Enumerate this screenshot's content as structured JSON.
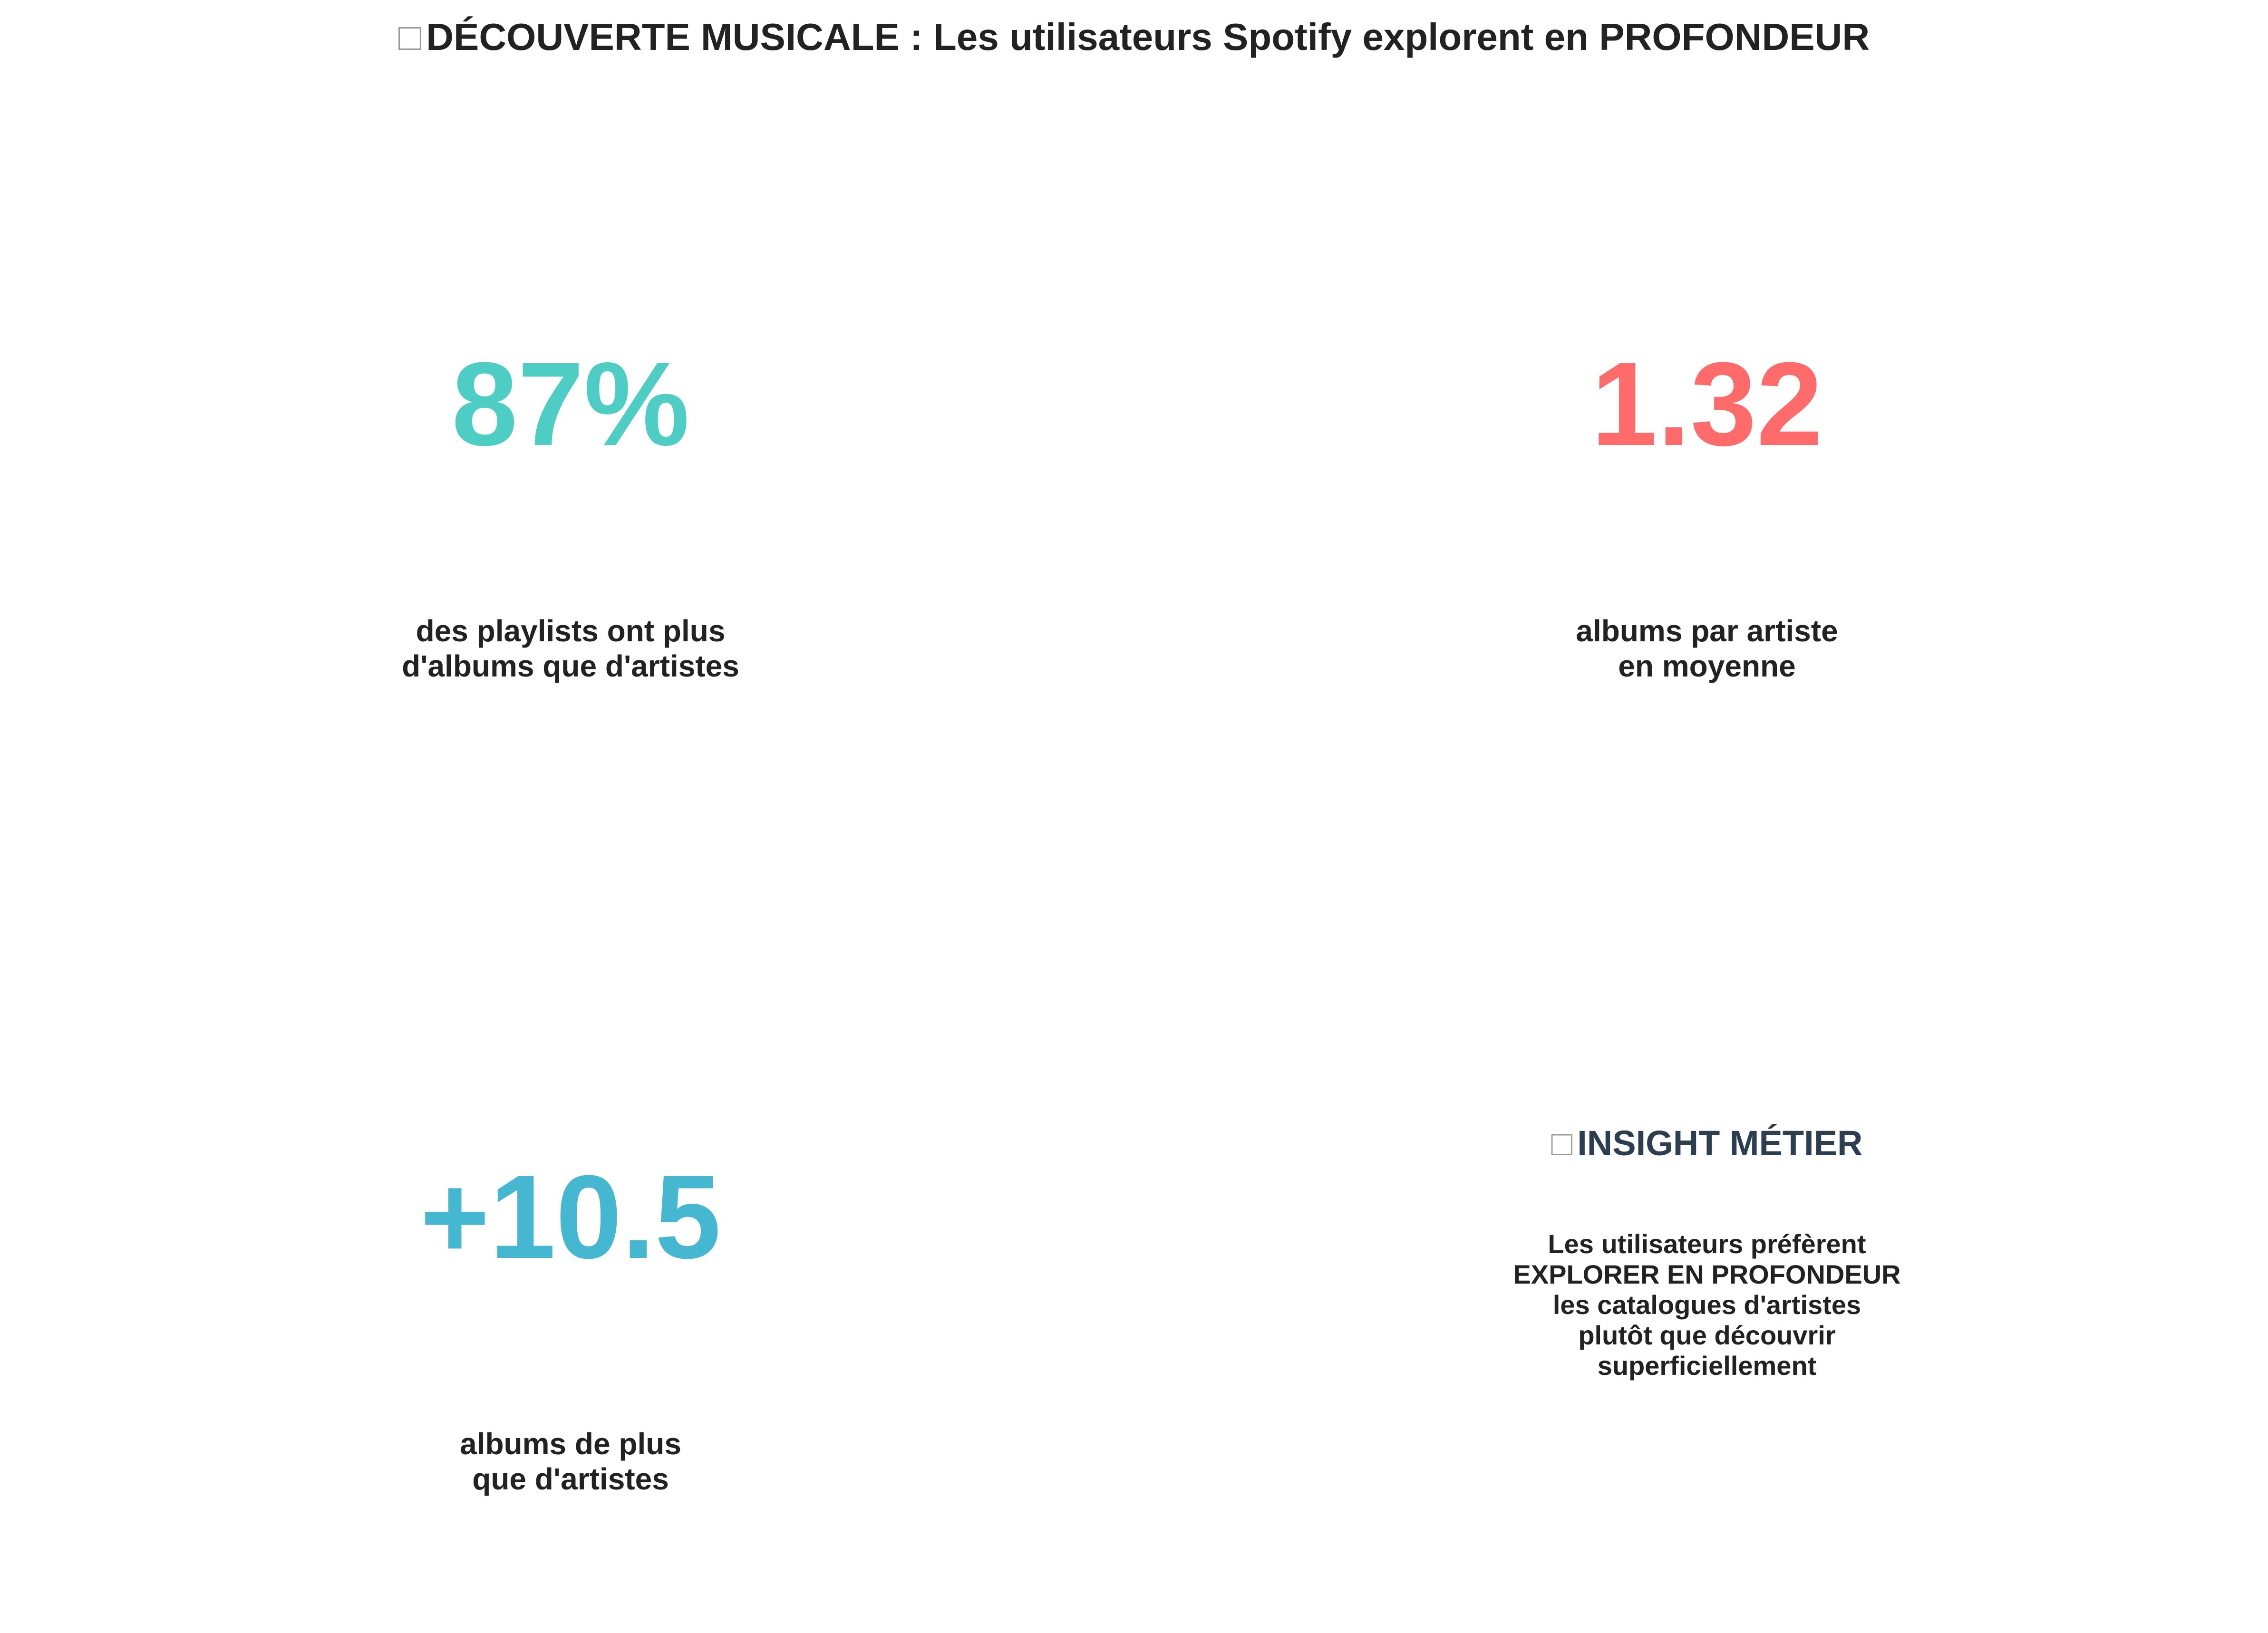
{
  "title": {
    "icon": "music-note-icon",
    "text": "DÉCOUVERTE MUSICALE : Les utilisateurs Spotify explorent en PROFONDEUR"
  },
  "metrics": [
    {
      "value": "87%",
      "color": "#4ECDC4",
      "label_lines": [
        "des playlists ont plus",
        "d'albums que d'artistes"
      ]
    },
    {
      "value": "1.32",
      "color": "#FF6B6B",
      "label_lines": [
        "albums par artiste",
        "en moyenne"
      ]
    },
    {
      "value": "+10.5",
      "color": "#45B7D1",
      "label_lines": [
        "albums de plus",
        "que d'artistes"
      ]
    }
  ],
  "insight": {
    "icon": "lightbulb-icon",
    "title": "INSIGHT MÉTIER",
    "lines": [
      "Les utilisateurs préfèrent",
      "EXPLORER EN PROFONDEUR",
      "les catalogues d'artistes",
      "plutôt que découvrir",
      "superficiellement"
    ]
  }
}
